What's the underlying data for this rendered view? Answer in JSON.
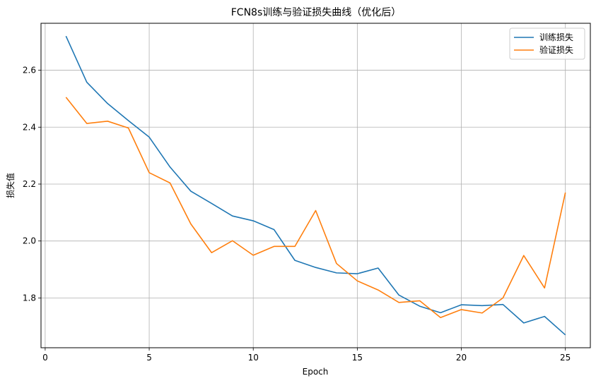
{
  "chart_data": {
    "type": "line",
    "title": "FCN8s训练与验证损失曲线（优化后）",
    "xlabel": "Epoch",
    "ylabel": "损失值",
    "xlim": [
      -0.2,
      26.2
    ],
    "ylim": [
      1.625,
      2.765
    ],
    "xticks": [
      0,
      5,
      10,
      15,
      20,
      25
    ],
    "yticks": [
      1.8,
      2.0,
      2.2,
      2.4,
      2.6
    ],
    "grid": true,
    "legend_position": "top-right",
    "x": [
      1,
      2,
      3,
      4,
      5,
      6,
      7,
      8,
      9,
      10,
      11,
      12,
      13,
      14,
      15,
      16,
      17,
      18,
      19,
      20,
      21,
      22,
      23,
      24,
      25
    ],
    "series": [
      {
        "name": "训练损失",
        "color": "#1f77b4",
        "values": [
          2.72,
          2.558,
          2.483,
          2.423,
          2.365,
          2.26,
          2.175,
          2.132,
          2.088,
          2.071,
          2.04,
          1.932,
          1.907,
          1.888,
          1.885,
          1.905,
          1.81,
          1.771,
          1.748,
          1.776,
          1.773,
          1.777,
          1.712,
          1.735,
          1.67
        ]
      },
      {
        "name": "验证损失",
        "color": "#ff7f0e",
        "values": [
          2.505,
          2.413,
          2.421,
          2.397,
          2.24,
          2.204,
          2.06,
          1.959,
          2.001,
          1.95,
          1.981,
          1.981,
          2.107,
          1.921,
          1.86,
          1.828,
          1.784,
          1.79,
          1.731,
          1.759,
          1.747,
          1.8,
          1.949,
          1.835,
          2.17
        ]
      }
    ]
  }
}
